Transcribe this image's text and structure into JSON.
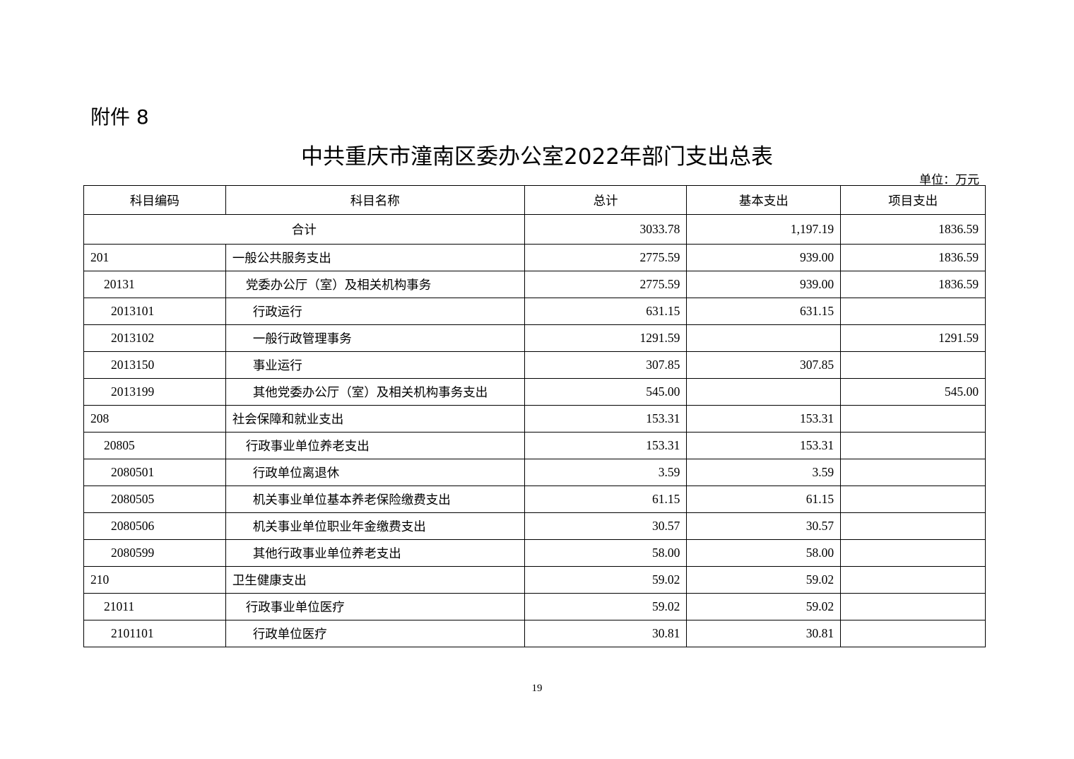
{
  "attachment_label": "附件 8",
  "title": "中共重庆市潼南区委办公室2022年部门支出总表",
  "unit": "单位：万元",
  "table": {
    "headers": [
      "科目编码",
      "科目名称",
      "总计",
      "基本支出",
      "项目支出"
    ],
    "total": {
      "label": "合计",
      "total": "3033.78",
      "basic": "1,197.19",
      "project": "1836.59"
    },
    "rows": [
      {
        "level": 1,
        "code": "201",
        "name": "一般公共服务支出",
        "total": "2775.59",
        "basic": "939.00",
        "project": "1836.59"
      },
      {
        "level": 2,
        "code": "20131",
        "name": "党委办公厅（室）及相关机构事务",
        "total": "2775.59",
        "basic": "939.00",
        "project": "1836.59"
      },
      {
        "level": 3,
        "code": "2013101",
        "name": "行政运行",
        "total": "631.15",
        "basic": "631.15",
        "project": ""
      },
      {
        "level": 3,
        "code": "2013102",
        "name": "一般行政管理事务",
        "total": "1291.59",
        "basic": "",
        "project": "1291.59"
      },
      {
        "level": 3,
        "code": "2013150",
        "name": "事业运行",
        "total": "307.85",
        "basic": "307.85",
        "project": ""
      },
      {
        "level": 3,
        "code": "2013199",
        "name": "其他党委办公厅（室）及相关机构事务支出",
        "total": "545.00",
        "basic": "",
        "project": "545.00"
      },
      {
        "level": 1,
        "code": "208",
        "name": "社会保障和就业支出",
        "total": "153.31",
        "basic": "153.31",
        "project": ""
      },
      {
        "level": 2,
        "code": "20805",
        "name": "行政事业单位养老支出",
        "total": "153.31",
        "basic": "153.31",
        "project": ""
      },
      {
        "level": 3,
        "code": "2080501",
        "name": "行政单位离退休",
        "total": "3.59",
        "basic": "3.59",
        "project": ""
      },
      {
        "level": 3,
        "code": "2080505",
        "name": "机关事业单位基本养老保险缴费支出",
        "total": "61.15",
        "basic": "61.15",
        "project": ""
      },
      {
        "level": 3,
        "code": "2080506",
        "name": "机关事业单位职业年金缴费支出",
        "total": "30.57",
        "basic": "30.57",
        "project": ""
      },
      {
        "level": 3,
        "code": "2080599",
        "name": "其他行政事业单位养老支出",
        "total": "58.00",
        "basic": "58.00",
        "project": ""
      },
      {
        "level": 1,
        "code": "210",
        "name": "卫生健康支出",
        "total": "59.02",
        "basic": "59.02",
        "project": ""
      },
      {
        "level": 2,
        "code": "21011",
        "name": "行政事业单位医疗",
        "total": "59.02",
        "basic": "59.02",
        "project": ""
      },
      {
        "level": 3,
        "code": "2101101",
        "name": "行政单位医疗",
        "total": "30.81",
        "basic": "30.81",
        "project": ""
      }
    ]
  },
  "page_number": "19"
}
